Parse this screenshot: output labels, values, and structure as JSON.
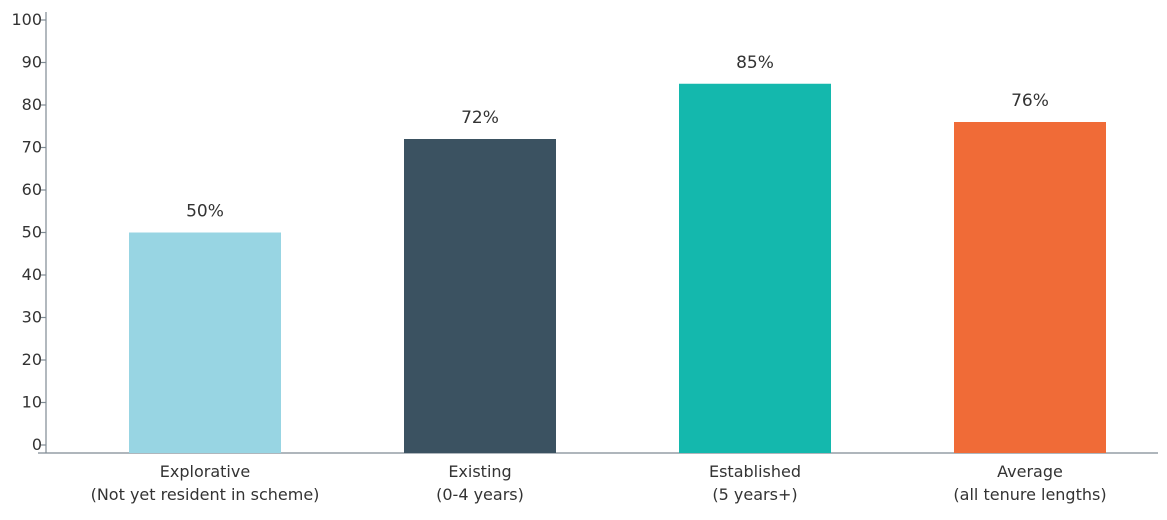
{
  "chart_data": {
    "type": "bar",
    "title": "",
    "xlabel": "",
    "ylabel": "",
    "ylim": [
      0,
      100
    ],
    "yticks": [
      0,
      10,
      20,
      30,
      40,
      50,
      60,
      70,
      80,
      90,
      100
    ],
    "grid": false,
    "categories": [
      [
        "Explorative",
        "(Not yet resident in scheme)"
      ],
      [
        "Existing",
        "(0-4 years)"
      ],
      [
        "Established",
        "(5 years+)"
      ],
      [
        "Average",
        "(all tenure lengths)"
      ]
    ],
    "values": [
      50,
      72,
      85,
      76
    ],
    "data_labels": [
      "50%",
      "72%",
      "85%",
      "76%"
    ],
    "colors": [
      "#98d5e3",
      "#3b5261",
      "#14b8ad",
      "#f06b37"
    ],
    "axis_color": "#7f8a93",
    "text_color": "#333333"
  }
}
